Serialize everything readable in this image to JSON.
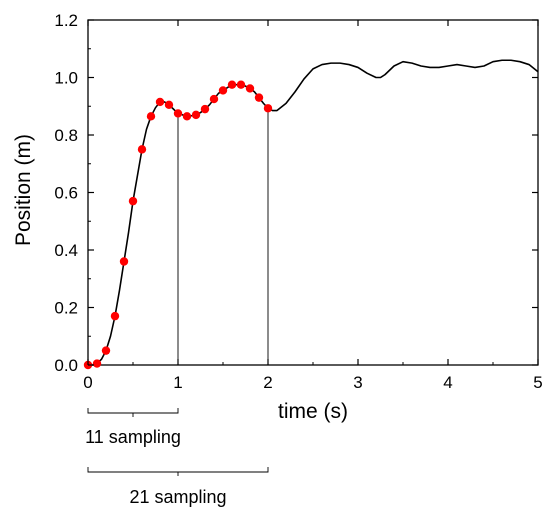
{
  "chart_data": {
    "type": "line",
    "title": "",
    "xlabel": "time (s)",
    "ylabel": "Position (m)",
    "xlim": [
      0,
      5
    ],
    "ylim": [
      0,
      1.2
    ],
    "xticks": [
      "0",
      "1",
      "2",
      "3",
      "4",
      "5"
    ],
    "yticks": [
      "0.0",
      "0.2",
      "0.4",
      "0.6",
      "0.8",
      "1.0",
      "1.2"
    ],
    "grid": false,
    "legend": "none",
    "curve": {
      "color": "#000000",
      "x": [
        0,
        0.05,
        0.1,
        0.15,
        0.2,
        0.25,
        0.3,
        0.35,
        0.4,
        0.45,
        0.5,
        0.55,
        0.6,
        0.65,
        0.7,
        0.75,
        0.8,
        0.85,
        0.9,
        0.95,
        1.0,
        1.05,
        1.1,
        1.15,
        1.2,
        1.25,
        1.3,
        1.35,
        1.4,
        1.45,
        1.5,
        1.55,
        1.6,
        1.65,
        1.7,
        1.75,
        1.8,
        1.85,
        1.9,
        1.95,
        2.0,
        2.05,
        2.1,
        2.2,
        2.3,
        2.4,
        2.5,
        2.6,
        2.7,
        2.8,
        2.9,
        3.0,
        3.1,
        3.2,
        3.25,
        3.3,
        3.4,
        3.5,
        3.6,
        3.7,
        3.8,
        3.9,
        4.0,
        4.1,
        4.2,
        4.3,
        4.4,
        4.5,
        4.6,
        4.7,
        4.8,
        4.9,
        5.0
      ],
      "y": [
        0.0,
        0.0,
        0.005,
        0.02,
        0.05,
        0.1,
        0.17,
        0.26,
        0.36,
        0.46,
        0.57,
        0.66,
        0.75,
        0.82,
        0.865,
        0.895,
        0.915,
        0.915,
        0.905,
        0.89,
        0.875,
        0.87,
        0.865,
        0.867,
        0.87,
        0.878,
        0.89,
        0.905,
        0.925,
        0.945,
        0.955,
        0.965,
        0.975,
        0.975,
        0.975,
        0.97,
        0.962,
        0.95,
        0.93,
        0.91,
        0.893,
        0.885,
        0.885,
        0.91,
        0.95,
        0.995,
        1.03,
        1.045,
        1.05,
        1.05,
        1.045,
        1.035,
        1.015,
        1.0,
        1.0,
        1.01,
        1.04,
        1.055,
        1.05,
        1.04,
        1.035,
        1.035,
        1.04,
        1.045,
        1.04,
        1.035,
        1.04,
        1.055,
        1.06,
        1.06,
        1.055,
        1.045,
        1.02
      ]
    },
    "samples": {
      "color": "#ff0000",
      "x": [
        0,
        0.1,
        0.2,
        0.3,
        0.4,
        0.5,
        0.6,
        0.7,
        0.8,
        0.9,
        1.0,
        1.1,
        1.2,
        1.3,
        1.4,
        1.5,
        1.6,
        1.7,
        1.8,
        1.9,
        2.0
      ],
      "y": [
        0.0,
        0.005,
        0.05,
        0.17,
        0.36,
        0.57,
        0.75,
        0.865,
        0.915,
        0.905,
        0.875,
        0.865,
        0.87,
        0.89,
        0.925,
        0.955,
        0.975,
        0.975,
        0.962,
        0.93,
        0.893
      ]
    },
    "reference_lines_x": [
      1,
      2
    ],
    "annotations": [
      {
        "text": "11 sampling",
        "from": 0,
        "to": 1
      },
      {
        "text": "21 sampling",
        "from": 0,
        "to": 2
      }
    ]
  }
}
